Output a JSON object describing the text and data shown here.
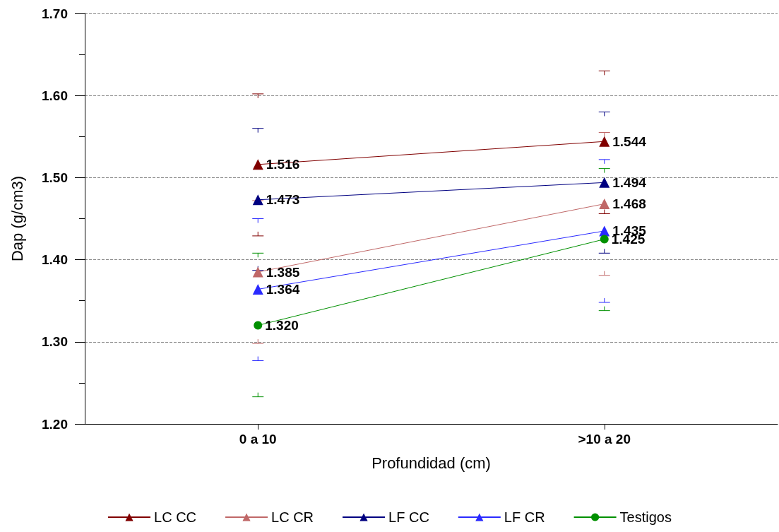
{
  "chart_data": {
    "type": "line",
    "xlabel": "Profundidad (cm)",
    "ylabel": "Dap (g/cm3)",
    "categories": [
      "0 a 10",
      ">10 a 20"
    ],
    "ylim": [
      1.2,
      1.7
    ],
    "yticks": [
      {
        "value": 1.2,
        "label": "1.20"
      },
      {
        "value": 1.3,
        "label": "1.30"
      },
      {
        "value": 1.4,
        "label": "1.40"
      },
      {
        "value": 1.5,
        "label": "1.50"
      },
      {
        "value": 1.6,
        "label": "1.60"
      },
      {
        "value": 1.7,
        "label": "1.70"
      }
    ],
    "grid": "y",
    "legend": "bottom",
    "line_style": "solid",
    "series": [
      {
        "name": "LC CC",
        "color": "#800000",
        "marker": "triangle",
        "values": [
          1.516,
          1.544
        ],
        "value_labels": [
          "1.516",
          "1.544"
        ],
        "errors": [
          [
            1.429,
            1.602
          ],
          [
            1.456,
            1.63
          ]
        ]
      },
      {
        "name": "LC CR",
        "color": "#c06868",
        "marker": "triangle",
        "values": [
          1.385,
          1.468
        ],
        "value_labels": [
          "1.385",
          "1.468"
        ],
        "errors": [
          [
            1.298,
            1.472
          ],
          [
            1.381,
            1.555
          ]
        ]
      },
      {
        "name": "LF CC",
        "color": "#000080",
        "marker": "triangle",
        "values": [
          1.473,
          1.494
        ],
        "value_labels": [
          "1.473",
          "1.494"
        ],
        "errors": [
          [
            1.387,
            1.56
          ],
          [
            1.408,
            1.58
          ]
        ]
      },
      {
        "name": "LF CR",
        "color": "#2a2aff",
        "marker": "triangle",
        "values": [
          1.364,
          1.435
        ],
        "value_labels": [
          "1.364",
          "1.435"
        ],
        "errors": [
          [
            1.277,
            1.45
          ],
          [
            1.348,
            1.522
          ]
        ]
      },
      {
        "name": "Testigos",
        "color": "#009000",
        "marker": "circle",
        "values": [
          1.32,
          1.425
        ],
        "value_labels": [
          "1.320",
          "1.425"
        ],
        "errors": [
          [
            1.233,
            1.408
          ],
          [
            1.338,
            1.511
          ]
        ]
      }
    ]
  }
}
